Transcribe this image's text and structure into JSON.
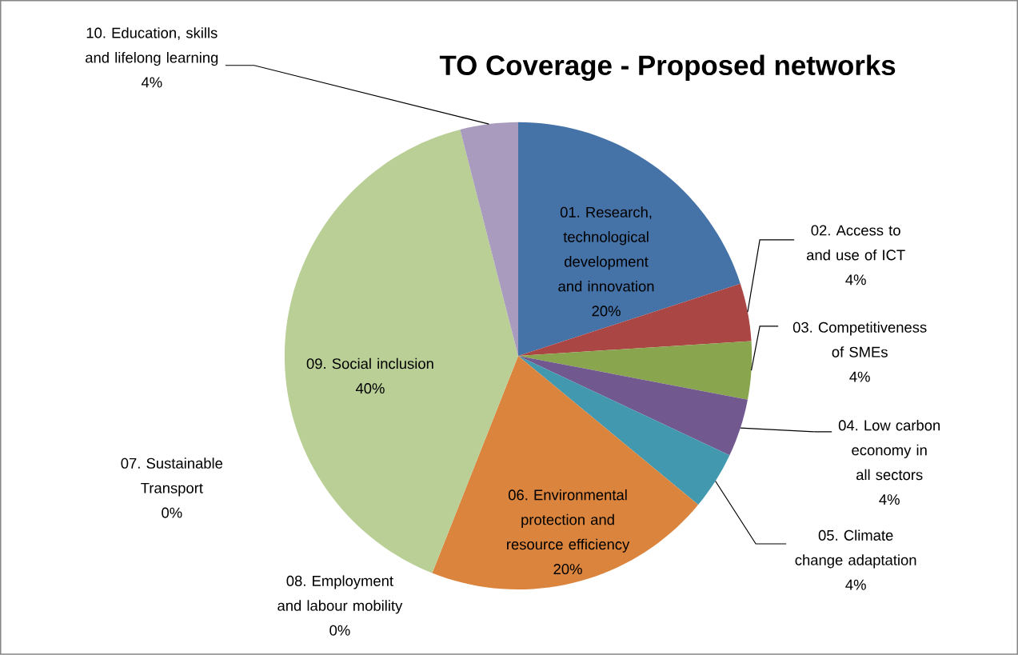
{
  "chart_data": {
    "type": "pie",
    "title": "TO Coverage - Proposed networks",
    "categories": [
      "01. Research, technological development and innovation",
      "02. Access to and use of ICT",
      "03. Competitiveness of SMEs",
      "04. Low carbon economy in all sectors",
      "05. Climate change adaptation",
      "06. Environmental protection and resource efficiency",
      "07. Sustainable Transport",
      "08. Employment and labour mobility",
      "09. Social inclusion",
      "10. Education, skills and lifelong learning"
    ],
    "values": [
      20,
      4,
      4,
      4,
      4,
      20,
      0,
      0,
      40,
      4
    ],
    "value_labels": [
      "20%",
      "4%",
      "4%",
      "4%",
      "4%",
      "20%",
      "0%",
      "0%",
      "40%",
      "4%"
    ],
    "colors": [
      "#4572a7",
      "#aa4643",
      "#89a54e",
      "#71588f",
      "#4198af",
      "#db843d",
      "#93a9cf",
      "#d19392",
      "#b9cf96",
      "#a99bbd"
    ]
  }
}
